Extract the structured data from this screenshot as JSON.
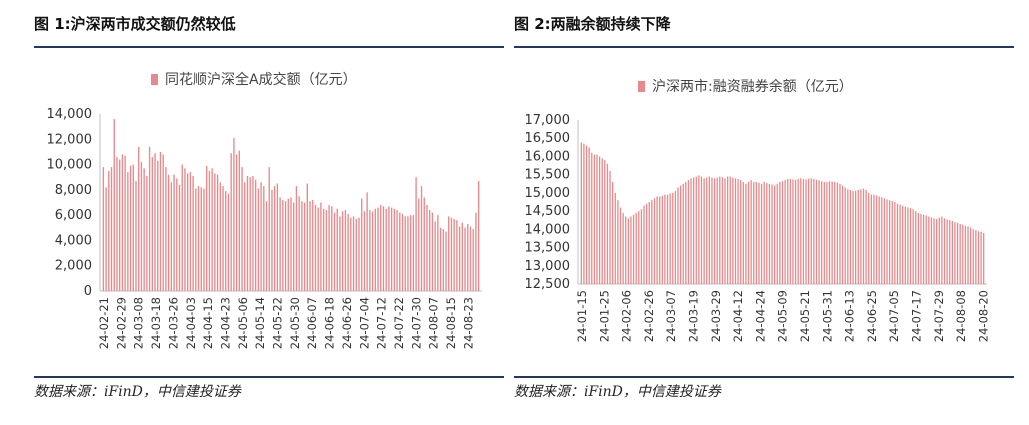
{
  "colors": {
    "bar": "#e8898c",
    "rule": "#1f3864",
    "axis": "#bfbfbf"
  },
  "chart_data": [
    {
      "type": "bar",
      "title": "图 1:沪深两市成交额仍然较低",
      "source": "数据来源：iFinD，中信建投证券",
      "legend": "同花顺沪深全A成交额（亿元）",
      "legend_position": "top",
      "grid": false,
      "ylim": [
        0,
        14000
      ],
      "yticks": [
        "0",
        "2,000",
        "4,000",
        "6,000",
        "8,000",
        "10,000",
        "12,000",
        "14,000"
      ],
      "xtick_labels": [
        "24-02-21",
        "24-02-29",
        "24-03-08",
        "24-03-18",
        "24-03-26",
        "24-04-03",
        "24-04-15",
        "24-04-23",
        "24-05-06",
        "24-05-14",
        "24-05-22",
        "24-05-30",
        "24-06-07",
        "24-06-18",
        "24-06-26",
        "24-07-04",
        "24-07-12",
        "24-07-22",
        "24-07-30",
        "24-08-07",
        "24-08-15",
        "24-08-23"
      ],
      "values": [
        9800,
        8200,
        9500,
        9800,
        13600,
        10600,
        10400,
        10800,
        10700,
        9400,
        9900,
        10000,
        8700,
        11400,
        10200,
        9700,
        9100,
        11400,
        10600,
        10900,
        10300,
        11000,
        10800,
        9800,
        9200,
        8600,
        9200,
        8900,
        8400,
        10000,
        9700,
        9300,
        9400,
        9100,
        8100,
        8300,
        8200,
        8100,
        9900,
        9500,
        9700,
        9300,
        9200,
        8600,
        8300,
        7900,
        7700,
        10900,
        12100,
        10800,
        11100,
        9800,
        8600,
        9100,
        9000,
        9100,
        8800,
        8100,
        8600,
        8300,
        7100,
        9800,
        8000,
        8300,
        8500,
        7400,
        7200,
        7100,
        7300,
        7400,
        7000,
        8300,
        7500,
        7100,
        7000,
        8500,
        7100,
        7200,
        6800,
        6600,
        7000,
        6500,
        6400,
        6800,
        6700,
        6200,
        6500,
        5900,
        6300,
        6400,
        6100,
        5800,
        5900,
        5700,
        5800,
        7300,
        6300,
        7800,
        6400,
        6300,
        6500,
        6600,
        6800,
        6700,
        6500,
        6700,
        6600,
        6500,
        6400,
        6200,
        6100,
        5900,
        5900,
        6000,
        6000,
        9000,
        7300,
        8300,
        7400,
        6800,
        6400,
        6200,
        5500,
        6000,
        5000,
        4900,
        4700,
        5900,
        5800,
        5700,
        5600,
        5100,
        5400,
        5000,
        5300,
        5100,
        4900,
        6200,
        8700
      ]
    },
    {
      "type": "bar",
      "title": "图 2:两融余额持续下降",
      "source": "数据来源：iFinD，中信建投证券",
      "legend": "沪深两市:融资融券余额（亿元）",
      "legend_position": "top",
      "grid": false,
      "ylim": [
        12500,
        17000
      ],
      "yticks": [
        "12,500",
        "13,000",
        "13,500",
        "14,000",
        "14,500",
        "15,000",
        "15,500",
        "16,000",
        "16,500",
        "17,000"
      ],
      "xtick_labels": [
        "24-01-15",
        "24-01-25",
        "24-02-06",
        "24-02-26",
        "24-03-07",
        "24-03-19",
        "24-03-29",
        "24-04-12",
        "24-04-24",
        "24-05-09",
        "24-05-21",
        "24-05-31",
        "24-06-13",
        "24-06-25",
        "24-07-05",
        "24-07-17",
        "24-07-29",
        "24-08-08",
        "24-08-20"
      ],
      "values": [
        16380,
        16350,
        16300,
        16250,
        16100,
        16050,
        16050,
        16000,
        15950,
        15900,
        15800,
        15600,
        15300,
        15000,
        14800,
        14600,
        14450,
        14350,
        14300,
        14350,
        14400,
        14450,
        14500,
        14550,
        14650,
        14700,
        14750,
        14800,
        14850,
        14900,
        14900,
        14920,
        14950,
        14950,
        14980,
        15000,
        15050,
        15150,
        15200,
        15250,
        15300,
        15350,
        15400,
        15420,
        15450,
        15480,
        15450,
        15400,
        15420,
        15450,
        15420,
        15400,
        15420,
        15450,
        15430,
        15400,
        15450,
        15450,
        15420,
        15400,
        15380,
        15350,
        15300,
        15250,
        15300,
        15350,
        15300,
        15300,
        15280,
        15250,
        15300,
        15270,
        15250,
        15230,
        15200,
        15250,
        15300,
        15320,
        15350,
        15380,
        15380,
        15370,
        15360,
        15380,
        15400,
        15380,
        15370,
        15390,
        15400,
        15380,
        15360,
        15350,
        15320,
        15300,
        15300,
        15320,
        15310,
        15300,
        15280,
        15250,
        15200,
        15150,
        15100,
        15080,
        15050,
        15060,
        15080,
        15100,
        15120,
        15080,
        15000,
        14950,
        14950,
        14930,
        14900,
        14880,
        14850,
        14820,
        14800,
        14780,
        14750,
        14700,
        14680,
        14650,
        14620,
        14600,
        14580,
        14550,
        14500,
        14450,
        14420,
        14400,
        14380,
        14350,
        14330,
        14300,
        14280,
        14320,
        14350,
        14300,
        14270,
        14250,
        14230,
        14200,
        14180,
        14150,
        14130,
        14100,
        14080,
        14050,
        14000,
        13980,
        13950,
        13930,
        13900
      ]
    }
  ]
}
